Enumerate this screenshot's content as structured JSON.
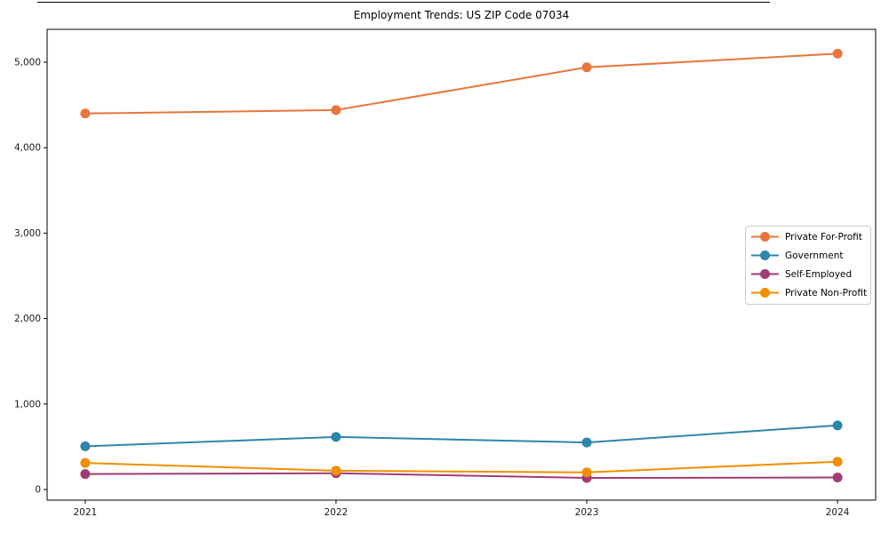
{
  "figure": {
    "background_color": "#ffffff",
    "spine_color": "#000000",
    "tick_color": "#000000",
    "tick_label_color": "#1a1a1a",
    "legend_border_color": "#cccccc",
    "legend_background_color": "#ffffff"
  },
  "chart_data": {
    "type": "line",
    "title": "Employment Trends: US ZIP Code 07034",
    "xlabel": "",
    "ylabel": "",
    "categories": [
      "2021",
      "2022",
      "2023",
      "2024"
    ],
    "series": [
      {
        "name": "Private For-Profit",
        "color": "#E8763C",
        "values": [
          4400,
          4440,
          4940,
          5100
        ]
      },
      {
        "name": "Government",
        "color": "#2E86AB",
        "values": [
          505,
          615,
          550,
          750
        ]
      },
      {
        "name": "Self-Employed",
        "color": "#A23B72",
        "values": [
          180,
          190,
          135,
          140
        ]
      },
      {
        "name": "Private Non-Profit",
        "color": "#F18F01",
        "values": [
          310,
          220,
          200,
          325
        ]
      }
    ],
    "yticks": [
      0,
      1000,
      2000,
      3000,
      4000,
      5000
    ],
    "ytick_labels": [
      "0",
      "1,000",
      "2,000",
      "3,000",
      "4,000",
      "5,000"
    ],
    "ylim": [
      -125,
      5385
    ],
    "grid": false,
    "legend_position": "center right",
    "marker": "circle",
    "marker_radius": 5.5,
    "line_width": 2
  }
}
